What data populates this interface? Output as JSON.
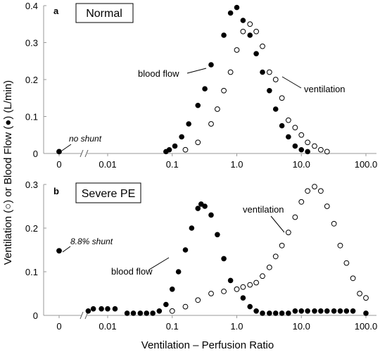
{
  "figure": {
    "ylabel": "Ventilation (○) or Blood Flow (●) (L/min)",
    "xlabel": "Ventilation – Perfusion Ratio"
  },
  "chart_data": [
    {
      "type": "scatter",
      "panel_letter": "a",
      "title": "Normal",
      "x_scale": "log",
      "x_tick_labels": [
        "0",
        "0.01",
        "0.1",
        "1.0",
        "10.0",
        "100.0"
      ],
      "y_tick_labels": [
        "0",
        "0.1",
        "0.2",
        "0.3",
        "0.4"
      ],
      "ylim": [
        0,
        0.4
      ],
      "annotations": {
        "shunt": "no shunt",
        "blood_flow": "blood flow",
        "ventilation": "ventilation"
      },
      "shunt_point": {
        "x": 0,
        "y": 0.005
      },
      "series": [
        {
          "name": "blood flow",
          "marker": "filled",
          "points": [
            [
              0.08,
              0.005
            ],
            [
              0.09,
              0.01
            ],
            [
              0.11,
              0.02
            ],
            [
              0.14,
              0.045
            ],
            [
              0.18,
              0.08
            ],
            [
              0.25,
              0.13
            ],
            [
              0.32,
              0.175
            ],
            [
              0.4,
              0.24
            ],
            [
              0.63,
              0.32
            ],
            [
              0.8,
              0.38
            ],
            [
              1.0,
              0.395
            ],
            [
              1.25,
              0.36
            ],
            [
              1.6,
              0.32
            ],
            [
              2.0,
              0.27
            ],
            [
              2.5,
              0.22
            ],
            [
              3.2,
              0.17
            ],
            [
              4.0,
              0.12
            ],
            [
              5.0,
              0.075
            ],
            [
              6.3,
              0.045
            ],
            [
              8.0,
              0.02
            ],
            [
              10.0,
              0.01
            ],
            [
              12.5,
              0.005
            ]
          ]
        },
        {
          "name": "ventilation",
          "marker": "open",
          "points": [
            [
              0.16,
              0.01
            ],
            [
              0.25,
              0.03
            ],
            [
              0.4,
              0.08
            ],
            [
              0.5,
              0.12
            ],
            [
              0.63,
              0.17
            ],
            [
              0.8,
              0.22
            ],
            [
              1.0,
              0.28
            ],
            [
              1.25,
              0.33
            ],
            [
              1.6,
              0.35
            ],
            [
              2.0,
              0.33
            ],
            [
              2.5,
              0.29
            ],
            [
              3.2,
              0.22
            ],
            [
              4.0,
              0.2
            ],
            [
              5.0,
              0.15
            ],
            [
              6.3,
              0.09
            ],
            [
              8.0,
              0.07
            ],
            [
              10.0,
              0.05
            ],
            [
              12.5,
              0.03
            ],
            [
              16.0,
              0.02
            ],
            [
              20.0,
              0.01
            ],
            [
              25.0,
              0.005
            ]
          ]
        }
      ]
    },
    {
      "type": "scatter",
      "panel_letter": "b",
      "title": "Severe PE",
      "x_scale": "log",
      "x_tick_labels": [
        "0",
        "0.01",
        "0.1",
        "1.0",
        "10.0",
        "100.0"
      ],
      "y_tick_labels": [
        "0",
        "0.1",
        "0.2",
        "0.3"
      ],
      "ylim": [
        0,
        0.3
      ],
      "annotations": {
        "shunt": "8.8% shunt",
        "blood_flow": "blood flow",
        "ventilation": "ventilation"
      },
      "shunt_point": {
        "x": 0,
        "y": 0.148
      },
      "series": [
        {
          "name": "blood flow",
          "marker": "filled",
          "points": [
            [
              0.005,
              0.01
            ],
            [
              0.006,
              0.015
            ],
            [
              0.008,
              0.015
            ],
            [
              0.01,
              0.015
            ],
            [
              0.013,
              0.015
            ],
            [
              0.02,
              0.005
            ],
            [
              0.025,
              0.005
            ],
            [
              0.032,
              0.005
            ],
            [
              0.04,
              0.005
            ],
            [
              0.05,
              0.005
            ],
            [
              0.063,
              0.01
            ],
            [
              0.08,
              0.025
            ],
            [
              0.1,
              0.06
            ],
            [
              0.125,
              0.1
            ],
            [
              0.16,
              0.15
            ],
            [
              0.2,
              0.2
            ],
            [
              0.25,
              0.245
            ],
            [
              0.28,
              0.255
            ],
            [
              0.32,
              0.25
            ],
            [
              0.4,
              0.23
            ],
            [
              0.5,
              0.185
            ],
            [
              0.63,
              0.13
            ],
            [
              0.8,
              0.08
            ],
            [
              1.0,
              0.06
            ],
            [
              1.25,
              0.04
            ],
            [
              1.6,
              0.02
            ],
            [
              2.0,
              0.01
            ],
            [
              2.5,
              0.005
            ],
            [
              3.2,
              0.005
            ],
            [
              4.0,
              0.005
            ],
            [
              5.0,
              0.005
            ],
            [
              6.3,
              0.005
            ],
            [
              8.0,
              0.01
            ],
            [
              10.0,
              0.01
            ],
            [
              12.5,
              0.01
            ],
            [
              16.0,
              0.01
            ],
            [
              20.0,
              0.01
            ],
            [
              25.0,
              0.01
            ],
            [
              32.0,
              0.01
            ],
            [
              40.0,
              0.01
            ],
            [
              50.0,
              0.01
            ],
            [
              63.0,
              0.01
            ],
            [
              100.0,
              0.005
            ]
          ]
        },
        {
          "name": "ventilation",
          "marker": "open",
          "points": [
            [
              0.1,
              0.01
            ],
            [
              0.16,
              0.02
            ],
            [
              0.25,
              0.035
            ],
            [
              0.4,
              0.05
            ],
            [
              0.63,
              0.055
            ],
            [
              1.0,
              0.06
            ],
            [
              1.25,
              0.065
            ],
            [
              1.6,
              0.07
            ],
            [
              2.0,
              0.075
            ],
            [
              2.5,
              0.09
            ],
            [
              3.2,
              0.11
            ],
            [
              4.0,
              0.135
            ],
            [
              5.0,
              0.16
            ],
            [
              6.3,
              0.19
            ],
            [
              8.0,
              0.225
            ],
            [
              10.0,
              0.26
            ],
            [
              12.5,
              0.285
            ],
            [
              16.0,
              0.295
            ],
            [
              20.0,
              0.285
            ],
            [
              25.0,
              0.25
            ],
            [
              32.0,
              0.21
            ],
            [
              40.0,
              0.16
            ],
            [
              50.0,
              0.12
            ],
            [
              63.0,
              0.085
            ],
            [
              80.0,
              0.05
            ],
            [
              100.0,
              0.04
            ]
          ]
        }
      ]
    }
  ]
}
